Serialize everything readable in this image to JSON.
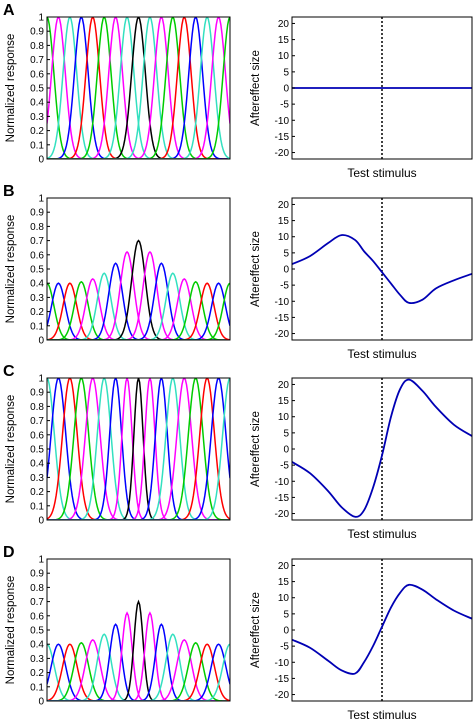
{
  "palette": {
    "tuning_colors": [
      "#0000ff",
      "#ff0000",
      "#00cc00",
      "#ff00ff",
      "#33e0c0"
    ],
    "center_curve": "#000000",
    "aftereffect_curve": "#0000b4",
    "axis": "#000000"
  },
  "chart_data": [
    {
      "type": "line",
      "panel_letter": "A",
      "title": "",
      "xlabel": "",
      "ylabel": "Normalized response",
      "ylim": [
        0,
        1
      ],
      "yticks": [
        "0",
        "0.1",
        "0.2",
        "0.3",
        "0.4",
        "0.5",
        "0.6",
        "0.7",
        "0.8",
        "0.9",
        "1"
      ],
      "xticks": [],
      "grid": false,
      "legend": "none",
      "series": [
        {
          "center": 0.0,
          "peak": 1.0,
          "width": 0.3,
          "color": "#00cc00"
        },
        {
          "center": 0.5,
          "peak": 1.0,
          "width": 0.3,
          "color": "#ff00ff"
        },
        {
          "center": 1.0,
          "peak": 1.0,
          "width": 0.3,
          "color": "#33e0c0"
        },
        {
          "center": 1.5,
          "peak": 1.0,
          "width": 0.3,
          "color": "#0000ff"
        },
        {
          "center": 2.0,
          "peak": 1.0,
          "width": 0.3,
          "color": "#ff0000"
        },
        {
          "center": 2.5,
          "peak": 1.0,
          "width": 0.3,
          "color": "#00cc00"
        },
        {
          "center": 3.0,
          "peak": 1.0,
          "width": 0.3,
          "color": "#ff00ff"
        },
        {
          "center": 3.5,
          "peak": 1.0,
          "width": 0.3,
          "color": "#33e0c0"
        },
        {
          "center": 4.0,
          "peak": 1.0,
          "width": 0.3,
          "color": "#000000"
        },
        {
          "center": 4.5,
          "peak": 1.0,
          "width": 0.3,
          "color": "#33e0c0"
        },
        {
          "center": 5.0,
          "peak": 1.0,
          "width": 0.3,
          "color": "#ff00ff"
        },
        {
          "center": 5.5,
          "peak": 1.0,
          "width": 0.3,
          "color": "#00cc00"
        },
        {
          "center": 6.0,
          "peak": 1.0,
          "width": 0.3,
          "color": "#ff0000"
        },
        {
          "center": 6.5,
          "peak": 1.0,
          "width": 0.3,
          "color": "#0000ff"
        },
        {
          "center": 7.0,
          "peak": 1.0,
          "width": 0.3,
          "color": "#33e0c0"
        },
        {
          "center": 7.5,
          "peak": 1.0,
          "width": 0.3,
          "color": "#ff00ff"
        },
        {
          "center": 8.0,
          "peak": 1.0,
          "width": 0.3,
          "color": "#00cc00"
        }
      ],
      "xlim": [
        0,
        8
      ]
    },
    {
      "type": "line",
      "panel_letter": "",
      "title": "",
      "xlabel": "Test stimulus",
      "ylabel": "Aftereffect size",
      "ylim": [
        -22,
        22
      ],
      "yticks": [
        "20",
        "15",
        "10",
        "5",
        "0",
        "-5",
        "-10",
        "-15",
        "-20"
      ],
      "xticks": [],
      "grid": false,
      "legend": "none",
      "xlim": [
        -1,
        1
      ],
      "adapt_marker_x": 0,
      "series": [
        {
          "x": [
            -1,
            -0.5,
            0,
            0.5,
            1
          ],
          "y": [
            0,
            0,
            0,
            0,
            0
          ]
        }
      ]
    },
    {
      "type": "line",
      "panel_letter": "B",
      "title": "",
      "xlabel": "",
      "ylabel": "Normalized response",
      "ylim": [
        0,
        1
      ],
      "yticks": [
        "0",
        "0.1",
        "0.2",
        "0.3",
        "0.4",
        "0.5",
        "0.6",
        "0.7",
        "0.8",
        "0.9",
        "1"
      ],
      "xticks": [],
      "grid": false,
      "legend": "none",
      "xlim": [
        0,
        8
      ],
      "series": [
        {
          "center": 0.0,
          "peak": 0.4,
          "width": 0.3,
          "color": "#00cc00"
        },
        {
          "center": 0.5,
          "peak": 0.4,
          "width": 0.3,
          "color": "#0000ff"
        },
        {
          "center": 1.0,
          "peak": 0.4,
          "width": 0.3,
          "color": "#ff0000"
        },
        {
          "center": 1.5,
          "peak": 0.41,
          "width": 0.3,
          "color": "#00cc00"
        },
        {
          "center": 2.0,
          "peak": 0.43,
          "width": 0.3,
          "color": "#ff00ff"
        },
        {
          "center": 2.5,
          "peak": 0.47,
          "width": 0.3,
          "color": "#33e0c0"
        },
        {
          "center": 3.0,
          "peak": 0.54,
          "width": 0.3,
          "color": "#0000ff"
        },
        {
          "center": 3.5,
          "peak": 0.62,
          "width": 0.3,
          "color": "#ff00ff"
        },
        {
          "center": 4.0,
          "peak": 0.7,
          "width": 0.3,
          "color": "#000000"
        },
        {
          "center": 4.5,
          "peak": 0.62,
          "width": 0.3,
          "color": "#ff00ff"
        },
        {
          "center": 5.0,
          "peak": 0.54,
          "width": 0.3,
          "color": "#0000ff"
        },
        {
          "center": 5.5,
          "peak": 0.47,
          "width": 0.3,
          "color": "#33e0c0"
        },
        {
          "center": 6.0,
          "peak": 0.43,
          "width": 0.3,
          "color": "#ff00ff"
        },
        {
          "center": 6.5,
          "peak": 0.41,
          "width": 0.3,
          "color": "#00cc00"
        },
        {
          "center": 7.0,
          "peak": 0.4,
          "width": 0.3,
          "color": "#ff0000"
        },
        {
          "center": 7.5,
          "peak": 0.4,
          "width": 0.3,
          "color": "#0000ff"
        },
        {
          "center": 8.0,
          "peak": 0.4,
          "width": 0.3,
          "color": "#00cc00"
        }
      ]
    },
    {
      "type": "line",
      "panel_letter": "",
      "title": "",
      "xlabel": "Test stimulus",
      "ylabel": "Aftereffect size",
      "ylim": [
        -22,
        22
      ],
      "yticks": [
        "20",
        "15",
        "10",
        "5",
        "0",
        "-5",
        "-10",
        "-15",
        "-20"
      ],
      "xticks": [],
      "grid": false,
      "legend": "none",
      "xlim": [
        -1,
        1
      ],
      "adapt_marker_x": 0,
      "series": [
        {
          "x": [
            -1,
            -0.8,
            -0.6,
            -0.45,
            -0.3,
            -0.2,
            -0.1,
            0,
            0.1,
            0.2,
            0.3,
            0.45,
            0.6,
            0.8,
            1
          ],
          "y": [
            1.5,
            4,
            8,
            10.5,
            9,
            5.5,
            2.5,
            -1,
            -4.5,
            -8,
            -10.5,
            -9.5,
            -6,
            -3.5,
            -1.5
          ]
        }
      ]
    },
    {
      "type": "line",
      "panel_letter": "C",
      "title": "",
      "xlabel": "",
      "ylabel": "Normalized response",
      "ylim": [
        0,
        1
      ],
      "yticks": [
        "0",
        "0.1",
        "0.2",
        "0.3",
        "0.4",
        "0.5",
        "0.6",
        "0.7",
        "0.8",
        "0.9",
        "1"
      ],
      "xticks": [],
      "grid": false,
      "legend": "none",
      "xlim": [
        0,
        8
      ],
      "series": [
        {
          "center": 0.0,
          "peak": 1.0,
          "width": 0.32,
          "color": "#33e0c0"
        },
        {
          "center": 0.5,
          "peak": 1.0,
          "width": 0.32,
          "color": "#0000ff"
        },
        {
          "center": 1.0,
          "peak": 1.0,
          "width": 0.32,
          "color": "#ff0000"
        },
        {
          "center": 1.5,
          "peak": 1.0,
          "width": 0.32,
          "color": "#00cc00"
        },
        {
          "center": 2.0,
          "peak": 1.0,
          "width": 0.32,
          "color": "#ff00ff"
        },
        {
          "center": 2.5,
          "peak": 1.0,
          "width": 0.3,
          "color": "#33e0c0"
        },
        {
          "center": 3.0,
          "peak": 1.0,
          "width": 0.26,
          "color": "#0000ff"
        },
        {
          "center": 3.5,
          "peak": 1.0,
          "width": 0.22,
          "color": "#ff00ff"
        },
        {
          "center": 4.0,
          "peak": 1.0,
          "width": 0.2,
          "color": "#000000"
        },
        {
          "center": 4.5,
          "peak": 1.0,
          "width": 0.22,
          "color": "#ff00ff"
        },
        {
          "center": 5.0,
          "peak": 1.0,
          "width": 0.26,
          "color": "#0000ff"
        },
        {
          "center": 5.5,
          "peak": 1.0,
          "width": 0.3,
          "color": "#33e0c0"
        },
        {
          "center": 6.0,
          "peak": 1.0,
          "width": 0.32,
          "color": "#ff00ff"
        },
        {
          "center": 6.5,
          "peak": 1.0,
          "width": 0.32,
          "color": "#00cc00"
        },
        {
          "center": 7.0,
          "peak": 1.0,
          "width": 0.32,
          "color": "#ff0000"
        },
        {
          "center": 7.5,
          "peak": 1.0,
          "width": 0.32,
          "color": "#0000ff"
        },
        {
          "center": 8.0,
          "peak": 1.0,
          "width": 0.32,
          "color": "#33e0c0"
        }
      ]
    },
    {
      "type": "line",
      "panel_letter": "",
      "title": "",
      "xlabel": "Test stimulus",
      "ylabel": "Aftereffect size",
      "ylim": [
        -22,
        22
      ],
      "yticks": [
        "20",
        "15",
        "10",
        "5",
        "0",
        "-5",
        "-10",
        "-15",
        "-20"
      ],
      "xticks": [],
      "grid": false,
      "legend": "none",
      "xlim": [
        -1,
        1
      ],
      "adapt_marker_x": 0,
      "series": [
        {
          "x": [
            -1,
            -0.8,
            -0.6,
            -0.45,
            -0.3,
            -0.2,
            -0.1,
            0,
            0.1,
            0.2,
            0.3,
            0.45,
            0.6,
            0.8,
            1
          ],
          "y": [
            -4,
            -7.5,
            -13,
            -18,
            -21,
            -19,
            -12,
            -2,
            10,
            18.5,
            21.5,
            18,
            13,
            7.5,
            4
          ]
        }
      ]
    },
    {
      "type": "line",
      "panel_letter": "D",
      "title": "",
      "xlabel": "",
      "ylabel": "Normalized response",
      "ylim": [
        0,
        1
      ],
      "yticks": [
        "0",
        "0.1",
        "0.2",
        "0.3",
        "0.4",
        "0.5",
        "0.6",
        "0.7",
        "0.8",
        "0.9",
        "1"
      ],
      "xticks": [],
      "grid": false,
      "legend": "none",
      "xlim": [
        0,
        8
      ],
      "series": [
        {
          "center": 0.0,
          "peak": 0.4,
          "width": 0.32,
          "color": "#33e0c0"
        },
        {
          "center": 0.5,
          "peak": 0.4,
          "width": 0.32,
          "color": "#0000ff"
        },
        {
          "center": 1.0,
          "peak": 0.4,
          "width": 0.32,
          "color": "#ff0000"
        },
        {
          "center": 1.5,
          "peak": 0.41,
          "width": 0.32,
          "color": "#00cc00"
        },
        {
          "center": 2.0,
          "peak": 0.43,
          "width": 0.32,
          "color": "#ff00ff"
        },
        {
          "center": 2.5,
          "peak": 0.47,
          "width": 0.3,
          "color": "#33e0c0"
        },
        {
          "center": 3.0,
          "peak": 0.54,
          "width": 0.26,
          "color": "#0000ff"
        },
        {
          "center": 3.5,
          "peak": 0.62,
          "width": 0.22,
          "color": "#ff00ff"
        },
        {
          "center": 4.0,
          "peak": 0.7,
          "width": 0.2,
          "color": "#000000"
        },
        {
          "center": 4.5,
          "peak": 0.62,
          "width": 0.22,
          "color": "#ff00ff"
        },
        {
          "center": 5.0,
          "peak": 0.54,
          "width": 0.26,
          "color": "#0000ff"
        },
        {
          "center": 5.5,
          "peak": 0.47,
          "width": 0.3,
          "color": "#33e0c0"
        },
        {
          "center": 6.0,
          "peak": 0.43,
          "width": 0.32,
          "color": "#ff00ff"
        },
        {
          "center": 6.5,
          "peak": 0.41,
          "width": 0.32,
          "color": "#00cc00"
        },
        {
          "center": 7.0,
          "peak": 0.4,
          "width": 0.32,
          "color": "#ff0000"
        },
        {
          "center": 7.5,
          "peak": 0.4,
          "width": 0.32,
          "color": "#0000ff"
        },
        {
          "center": 8.0,
          "peak": 0.4,
          "width": 0.32,
          "color": "#33e0c0"
        }
      ]
    },
    {
      "type": "line",
      "panel_letter": "",
      "title": "",
      "xlabel": "Test stimulus",
      "ylabel": "Aftereffect size",
      "ylim": [
        -22,
        22
      ],
      "yticks": [
        "20",
        "15",
        "10",
        "5",
        "0",
        "-5",
        "-10",
        "-15",
        "-20"
      ],
      "xticks": [],
      "grid": false,
      "legend": "none",
      "xlim": [
        -1,
        1
      ],
      "adapt_marker_x": 0,
      "series": [
        {
          "x": [
            -1,
            -0.8,
            -0.6,
            -0.45,
            -0.3,
            -0.2,
            -0.1,
            0,
            0.1,
            0.2,
            0.3,
            0.45,
            0.6,
            0.8,
            1
          ],
          "y": [
            -3,
            -5.5,
            -9.5,
            -12.5,
            -13.5,
            -10,
            -5,
            1,
            7,
            11.5,
            14,
            12.5,
            9.5,
            6,
            3.5
          ]
        }
      ]
    }
  ]
}
